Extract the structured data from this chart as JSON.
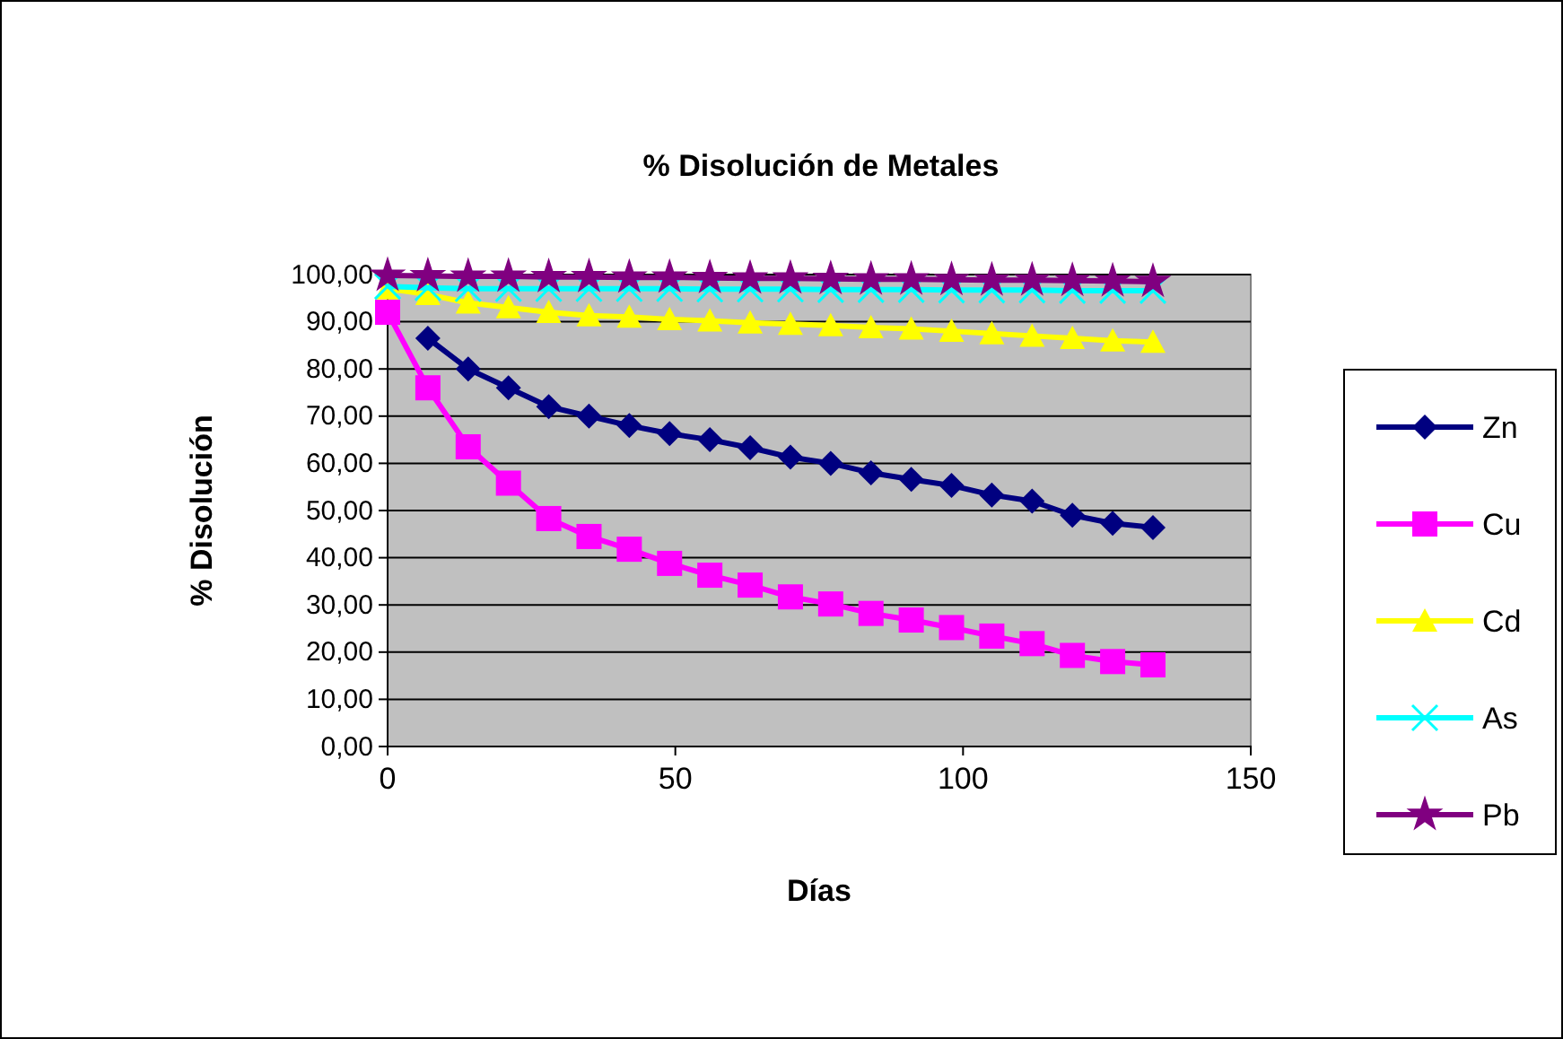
{
  "chart_data": {
    "type": "line",
    "title": "% Disolución de Metales",
    "xlabel": "Días",
    "ylabel": "% Disolución",
    "x": [
      0,
      7,
      14,
      21,
      28,
      35,
      42,
      49,
      56,
      63,
      70,
      77,
      84,
      91,
      98,
      105,
      112,
      119,
      126,
      133
    ],
    "xlim": [
      0,
      150
    ],
    "xticks": [
      0,
      50,
      100,
      150
    ],
    "ylim": [
      0,
      100
    ],
    "yticks": [
      {
        "value": 0,
        "label": "0,00"
      },
      {
        "value": 10,
        "label": "10,00"
      },
      {
        "value": 20,
        "label": "20,00"
      },
      {
        "value": 30,
        "label": "30,00"
      },
      {
        "value": 40,
        "label": "40,00"
      },
      {
        "value": 50,
        "label": "50,00"
      },
      {
        "value": 60,
        "label": "60,00"
      },
      {
        "value": 70,
        "label": "70,00"
      },
      {
        "value": 80,
        "label": "80,00"
      },
      {
        "value": 90,
        "label": "90,00"
      },
      {
        "value": 100,
        "label": "100,00"
      }
    ],
    "grid": "y",
    "legend": "right",
    "series": [
      {
        "name": "Zn",
        "color": "#000080",
        "marker": "diamond",
        "values": [
          null,
          86.5,
          80,
          76,
          72,
          70,
          68,
          66.3,
          65,
          63.3,
          61.3,
          60,
          58,
          56.6,
          55.3,
          53.3,
          52,
          49,
          47.3,
          46.4
        ]
      },
      {
        "name": "Cu",
        "color": "#ff00ff",
        "marker": "square",
        "values": [
          92,
          76,
          63.5,
          55.8,
          48.3,
          44.5,
          41.8,
          38.8,
          36.3,
          34.2,
          31.7,
          30.2,
          28.2,
          26.8,
          25.2,
          23.4,
          21.8,
          19.3,
          18,
          17.3
        ]
      },
      {
        "name": "Cd",
        "color": "#ffff00",
        "marker": "triangle",
        "values": [
          97,
          95.8,
          94,
          93,
          92,
          91.3,
          91,
          90.5,
          90.2,
          89.8,
          89.5,
          89.2,
          88.8,
          88.5,
          88,
          87.5,
          87,
          86.5,
          86,
          85.7
        ]
      },
      {
        "name": "As",
        "color": "#00ffff",
        "marker": "cross",
        "values": [
          97.5,
          97.2,
          97,
          97,
          97,
          97,
          97,
          97,
          96.9,
          96.9,
          96.9,
          96.8,
          96.8,
          96.8,
          96.7,
          96.7,
          96.7,
          96.6,
          96.6,
          96.6
        ]
      },
      {
        "name": "Pb",
        "color": "#800080",
        "marker": "star",
        "values": [
          99.8,
          99.7,
          99.6,
          99.6,
          99.5,
          99.5,
          99.4,
          99.4,
          99.3,
          99.2,
          99.2,
          99.1,
          99,
          99,
          98.9,
          98.8,
          98.8,
          98.7,
          98.6,
          98.5
        ]
      }
    ]
  }
}
